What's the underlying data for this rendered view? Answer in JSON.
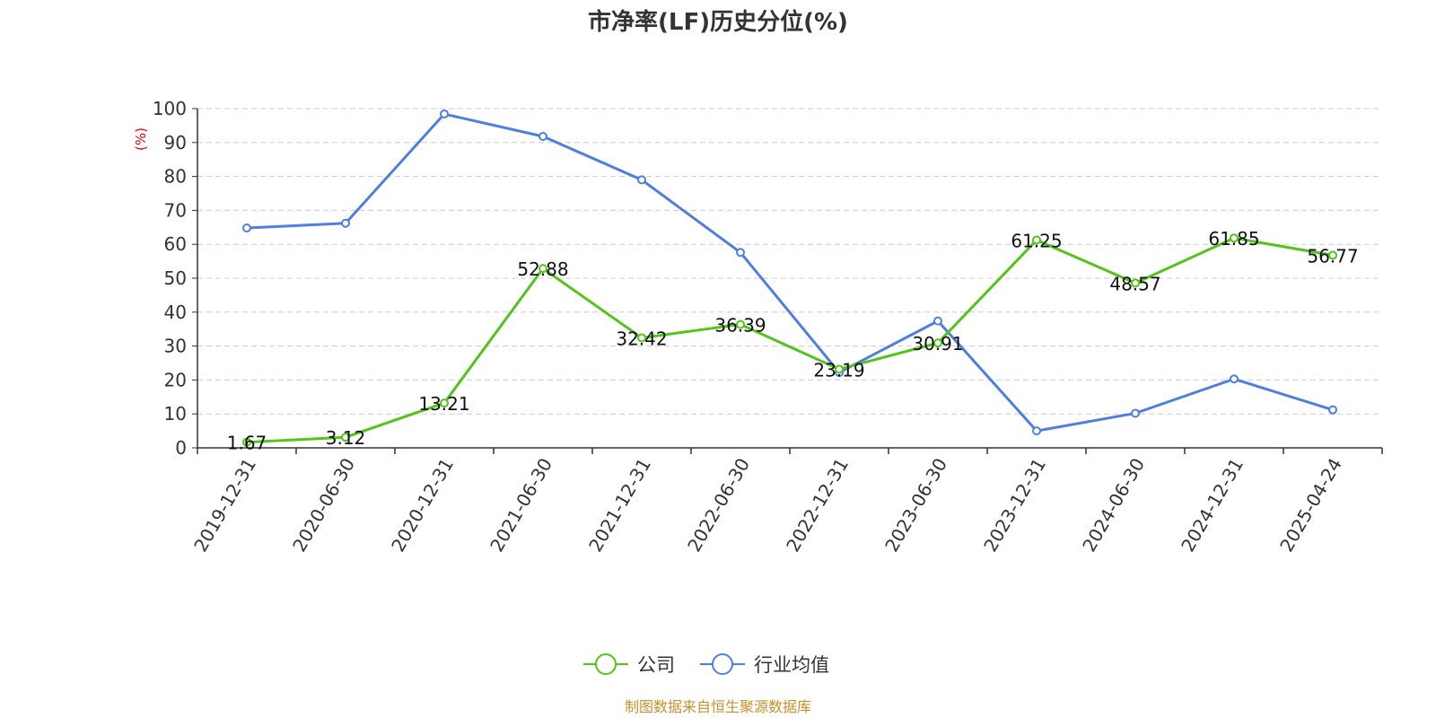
{
  "chart_data": {
    "type": "line",
    "title": "市净率(LF)历史分位(%)",
    "ylabel": "(%)",
    "xlabel": "",
    "ylim": [
      0,
      100
    ],
    "ytick_step": 10,
    "grid": true,
    "categories": [
      "2019-12-31",
      "2020-06-30",
      "2020-12-31",
      "2021-06-30",
      "2021-12-31",
      "2022-06-30",
      "2022-12-31",
      "2023-06-30",
      "2023-12-31",
      "2024-06-30",
      "2024-12-31",
      "2025-04-24"
    ],
    "series": [
      {
        "name": "公司",
        "color": "#52c41a",
        "show_labels": true,
        "values": [
          1.67,
          3.12,
          13.21,
          52.88,
          32.42,
          36.39,
          23.19,
          30.91,
          61.25,
          48.57,
          61.85,
          56.77
        ],
        "labels": [
          "1.67",
          "3.12",
          "13.21",
          "52.88",
          "32.42",
          "36.39",
          "23.19",
          "30.91",
          "61.25",
          "48.57",
          "61.85",
          "56.77"
        ]
      },
      {
        "name": "行业均值",
        "color": "#4e7fe0",
        "show_labels": false,
        "values": [
          64.8,
          66.2,
          98.4,
          91.8,
          79.0,
          57.6,
          22.2,
          37.4,
          5.0,
          10.2,
          20.3,
          11.2
        ]
      }
    ],
    "legend_position": "bottom-center",
    "source": "制图数据来自恒生聚源数据库"
  }
}
